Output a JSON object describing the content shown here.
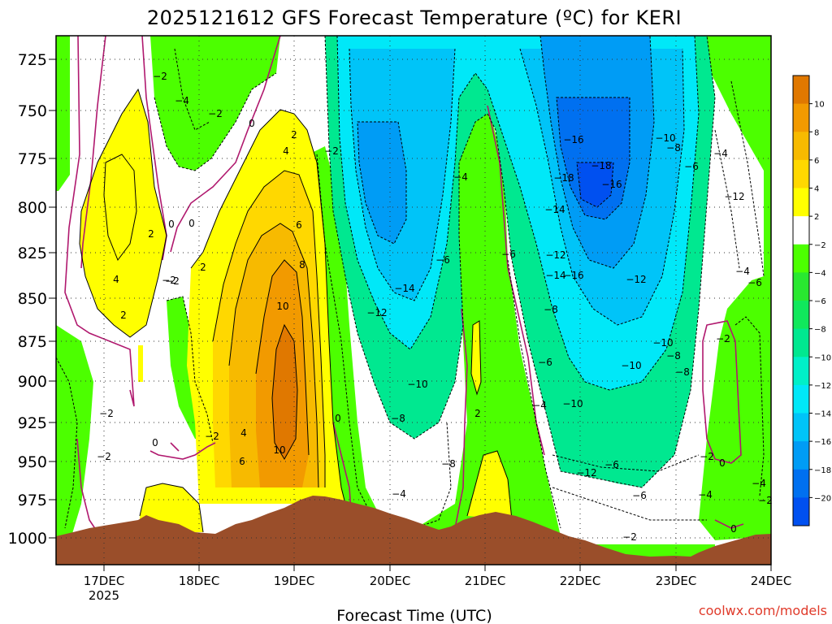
{
  "chart_data": {
    "type": "heatmap",
    "title": "2025121612 GFS Forecast Temperature (ºC) for KERI",
    "xlabel": "Forecast Time (UTC)",
    "ylabel": "",
    "x_ticks": [
      "17DEC",
      "18DEC",
      "19DEC",
      "20DEC",
      "21DEC",
      "22DEC",
      "23DEC",
      "24DEC"
    ],
    "x_year_label": "2025",
    "y_ticks": [
      725,
      750,
      775,
      800,
      825,
      850,
      875,
      900,
      925,
      950,
      975,
      1000
    ],
    "ylim": [
      712,
      1008
    ],
    "xlim_days": [
      16.5,
      24.0
    ],
    "colorbar": {
      "levels": [
        10,
        8,
        6,
        4,
        2,
        -2,
        -4,
        -6,
        -8,
        -10,
        -12,
        -14,
        -16,
        -18,
        -20
      ],
      "level_labels": [
        "10",
        "8",
        "6",
        "4",
        "2",
        "−2",
        "−4",
        "−6",
        "−8",
        "−10",
        "−12",
        "−14",
        "−16",
        "−18",
        "−20"
      ],
      "colors": [
        "#e07800",
        "#f29a00",
        "#f7ba00",
        "#ffd800",
        "#ffff00",
        "#ffffff",
        "#4cff00",
        "#29e830",
        "#10e85c",
        "#00e890",
        "#00f0c8",
        "#00e8f8",
        "#00c4f8",
        "#009cf5",
        "#0070f0",
        "#0050f0"
      ]
    },
    "contour_labels": [
      "−2",
      "−4",
      "−2",
      "0",
      "2",
      "4",
      "2",
      "4",
      "2",
      "0",
      "−2",
      "0",
      "2",
      "6",
      "4",
      "8",
      "10",
      "6",
      "10",
      "0",
      "−2",
      "0",
      "−2",
      "−2",
      "−2",
      "−4",
      "−8",
      "−14",
      "−12",
      "−10",
      "−8",
      "−6",
      "−4",
      "2",
      "−6",
      "−14",
      "−12",
      "−8",
      "−6",
      "−4",
      "−10",
      "−16",
      "−18",
      "−18",
      "−16",
      "−16",
      "−14",
      "−12",
      "−10",
      "−8",
      "−6",
      "−4",
      "−12",
      "−10",
      "−8",
      "−10",
      "−8",
      "−6",
      "−12",
      "−6",
      "−4",
      "−2",
      "−2",
      "0",
      "0",
      "−2",
      "−4",
      "−6",
      "−4",
      "−2",
      "−2"
    ]
  },
  "credit": "coolwx.com/models"
}
